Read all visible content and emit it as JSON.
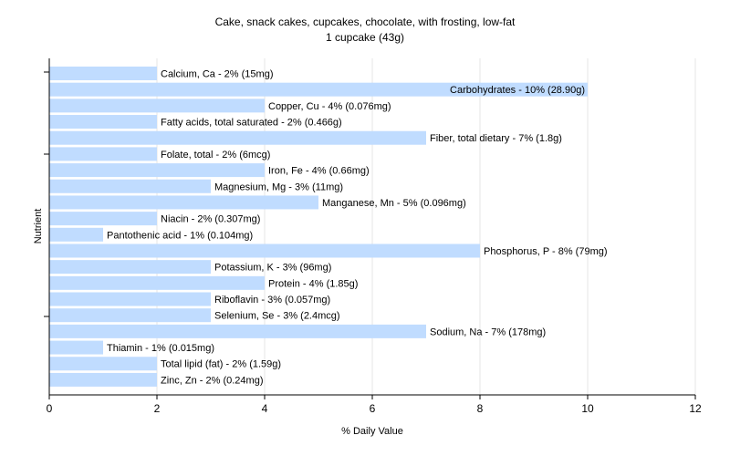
{
  "chart_data": {
    "type": "bar",
    "orientation": "horizontal",
    "title": "Cake, snack cakes, cupcakes, chocolate, with frosting, low-fat",
    "subtitle": "1 cupcake (43g)",
    "xlabel": "% Daily Value",
    "ylabel": "Nutrient",
    "xlim": [
      0,
      12
    ],
    "xticks": [
      "0",
      "2",
      "4",
      "6",
      "8",
      "10",
      "12"
    ],
    "grid": "vertical",
    "bar_color": "#c0dcff",
    "categories": [
      "Calcium, Ca",
      "Carbohydrates",
      "Copper, Cu",
      "Fatty acids, total saturated",
      "Fiber, total dietary",
      "Folate, total",
      "Iron, Fe",
      "Magnesium, Mg",
      "Manganese, Mn",
      "Niacin",
      "Pantothenic acid",
      "Phosphorus, P",
      "Potassium, K",
      "Protein",
      "Riboflavin",
      "Selenium, Se",
      "Sodium, Na",
      "Thiamin",
      "Total lipid (fat)",
      "Zinc, Zn"
    ],
    "values": [
      2,
      10,
      4,
      2,
      7,
      2,
      4,
      3,
      5,
      2,
      1,
      8,
      3,
      4,
      3,
      3,
      7,
      1,
      2,
      2
    ],
    "labels": [
      "Calcium, Ca - 2% (15mg)",
      "Carbohydrates - 10% (28.90g)",
      "Copper, Cu - 4% (0.076mg)",
      "Fatty acids, total saturated - 2% (0.466g)",
      "Fiber, total dietary - 7% (1.8g)",
      "Folate, total - 2% (6mcg)",
      "Iron, Fe - 4% (0.66mg)",
      "Magnesium, Mg - 3% (11mg)",
      "Manganese, Mn - 5% (0.096mg)",
      "Niacin - 2% (0.307mg)",
      "Pantothenic acid - 1% (0.104mg)",
      "Phosphorus, P - 8% (79mg)",
      "Potassium, K - 3% (96mg)",
      "Protein - 4% (1.85g)",
      "Riboflavin - 3% (0.057mg)",
      "Selenium, Se - 3% (2.4mcg)",
      "Sodium, Na - 7% (178mg)",
      "Thiamin - 1% (0.015mg)",
      "Total lipid (fat) - 2% (1.59g)",
      "Zinc, Zn - 2% (0.24mg)"
    ]
  }
}
